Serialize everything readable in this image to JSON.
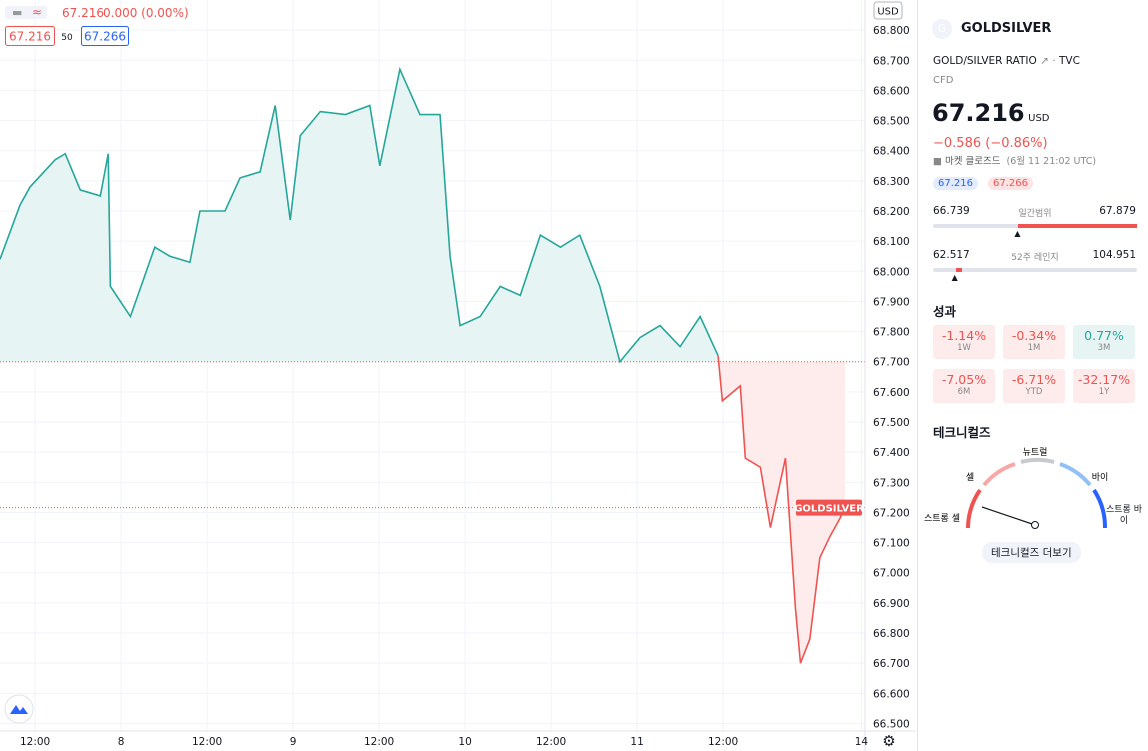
{
  "legend": {
    "price": "67.216",
    "change": "0.000 (0.00%)",
    "bid": "67.216",
    "spread": "50",
    "ask": "67.266"
  },
  "chart_data": {
    "type": "line",
    "unit": "USD",
    "baseline": 67.7,
    "last": 67.216,
    "xlim": [
      -4.9,
      115.8
    ],
    "ylim": [
      66.475,
      68.9
    ],
    "xticks": [
      {
        "value": 0,
        "label": "12:00"
      },
      {
        "value": 12,
        "label": "8"
      },
      {
        "value": 24,
        "label": "12:00"
      },
      {
        "value": 36,
        "label": "9"
      },
      {
        "value": 48,
        "label": "12:00"
      },
      {
        "value": 60,
        "label": "10"
      },
      {
        "value": 72,
        "label": "12:00"
      },
      {
        "value": 84,
        "label": "11"
      },
      {
        "value": 96,
        "label": "12:00"
      },
      {
        "value": 115.3,
        "label": "14"
      }
    ],
    "yticks": [
      {
        "value": 68.8,
        "label": "68.800"
      },
      {
        "value": 68.7,
        "label": "68.700"
      },
      {
        "value": 68.6,
        "label": "68.600"
      },
      {
        "value": 68.5,
        "label": "68.500"
      },
      {
        "value": 68.4,
        "label": "68.400"
      },
      {
        "value": 68.3,
        "label": "68.300"
      },
      {
        "value": 68.2,
        "label": "68.200"
      },
      {
        "value": 68.1,
        "label": "68.100"
      },
      {
        "value": 68.0,
        "label": "68.000"
      },
      {
        "value": 67.9,
        "label": "67.900"
      },
      {
        "value": 67.8,
        "label": "67.800"
      },
      {
        "value": 67.7,
        "label": "67.700"
      },
      {
        "value": 67.6,
        "label": "67.600"
      },
      {
        "value": 67.5,
        "label": "67.500"
      },
      {
        "value": 67.4,
        "label": "67.400"
      },
      {
        "value": 67.3,
        "label": "67.300"
      },
      {
        "value": 67.2,
        "label": "67.200"
      },
      {
        "value": 67.1,
        "label": "67.100"
      },
      {
        "value": 67.0,
        "label": "67.000"
      },
      {
        "value": 66.9,
        "label": "66.900"
      },
      {
        "value": 66.8,
        "label": "66.800"
      },
      {
        "value": 66.7,
        "label": "66.700"
      },
      {
        "value": 66.6,
        "label": "66.600"
      },
      {
        "value": 66.5,
        "label": "66.500"
      }
    ],
    "series": [
      {
        "color": "#26a69a",
        "fill": "#e6f5f3",
        "x": [
          -4.9,
          -2.1,
          -0.7,
          2.8,
          4.2,
          6.3,
          9.1,
          10.2,
          10.5,
          13.3,
          16.7,
          18.8,
          21.6,
          23.0,
          26.5,
          28.6,
          31.4,
          33.5,
          35.6,
          37.0,
          39.8,
          43.3,
          46.7,
          48.1,
          50.9,
          53.7,
          56.5,
          57.9,
          59.3,
          62.1,
          64.9,
          67.7,
          70.5,
          73.3,
          76.0,
          78.8,
          81.6,
          84.4,
          87.2,
          90.0,
          92.8,
          95.3
        ],
        "values": [
          68.04,
          68.22,
          68.28,
          68.37,
          68.39,
          68.27,
          68.25,
          68.39,
          67.95,
          67.85,
          68.08,
          68.05,
          68.03,
          68.2,
          68.2,
          68.31,
          68.33,
          68.55,
          68.17,
          68.45,
          68.53,
          68.52,
          68.55,
          68.35,
          68.67,
          68.52,
          68.52,
          68.05,
          67.82,
          67.85,
          67.95,
          67.92,
          68.12,
          68.08,
          68.12,
          67.95,
          67.7,
          67.78,
          67.82,
          67.75,
          67.85,
          67.72
        ]
      },
      {
        "color": "#ef5350",
        "fill": "#fdeceb",
        "x": [
          95.3,
          95.9,
          98.4,
          99.1,
          101.2,
          102.6,
          104.7,
          106.1,
          106.8,
          108.1,
          109.5,
          110.9,
          112.3,
          113.0
        ],
        "values": [
          67.72,
          67.57,
          67.62,
          67.38,
          67.35,
          67.15,
          67.38,
          66.88,
          66.7,
          66.78,
          67.05,
          67.12,
          67.18,
          67.216
        ]
      }
    ]
  },
  "sidebar": {
    "icon": "G",
    "symbol": "GOLDSILVER",
    "description": "GOLD/SILVER RATIO",
    "exchange": "TVC",
    "kind": "CFD",
    "price": "67.216",
    "currency": "USD",
    "change": "−0.586 (−0.86%)",
    "status": "마켓 클로즈드",
    "time": "(6월 11 21:02 UTC)",
    "bid": "67.216",
    "ask": "67.266",
    "day_range": {
      "low": 66.739,
      "label": "일간범위",
      "high": 67.879,
      "current": 67.216
    },
    "week52": {
      "low": 62.517,
      "label": "52주 레인지",
      "high": 104.951,
      "current": 67.216
    },
    "performance": {
      "title": "성과",
      "items": [
        {
          "value": "-1.14%",
          "period": "1W"
        },
        {
          "value": "-0.34%",
          "period": "1M"
        },
        {
          "value": "0.77%",
          "period": "3M"
        },
        {
          "value": "-7.05%",
          "period": "6M"
        },
        {
          "value": "-6.71%",
          "period": "YTD"
        },
        {
          "value": "-32.17%",
          "period": "1Y"
        }
      ]
    },
    "technicals": {
      "title": "테크니컬즈",
      "neutral": "뉴트럴",
      "sell": "셀",
      "buy": "바이",
      "strong_sell": "스트롱 셀",
      "strong_buy": "스트롱 바\n이",
      "button": "테크니컬즈 더보기"
    }
  }
}
